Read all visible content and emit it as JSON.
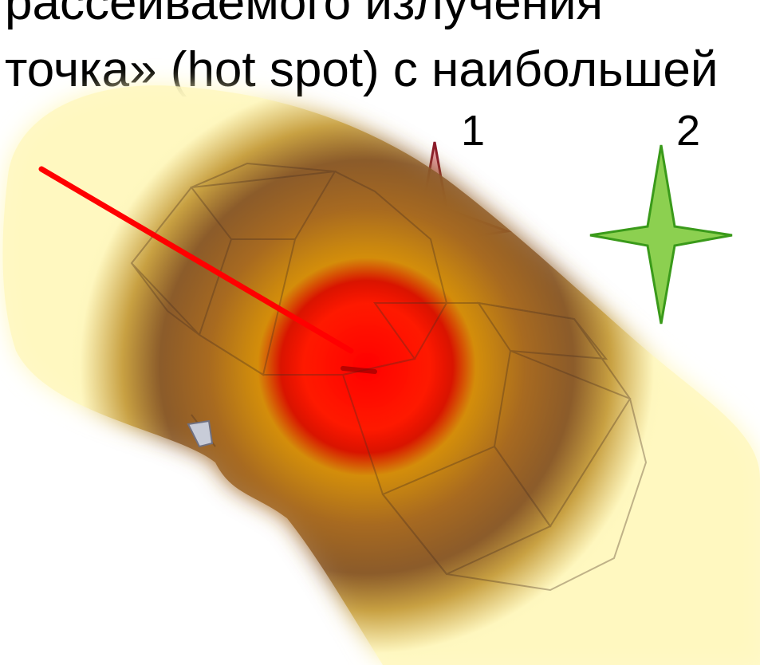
{
  "heading": {
    "line1": "рассеиваемого излучения",
    "line2": "точка» (hot spot) с наибольшей"
  },
  "labels": {
    "one": "1",
    "two": "2"
  },
  "colors": {
    "hotspot_core": "#ff0000",
    "hotspot_mid": "#d4900a",
    "hotspot_outer": "#8a5a2a",
    "halo": "#fff8c0",
    "arrow": "#ff0000",
    "star_1_fill": "#e8a0a8",
    "star_1_stroke": "#8b1a2a",
    "star_2_fill": "#8cd050",
    "star_2_stroke": "#3a9a1a"
  },
  "icons": {
    "star_1": "four-point-star-icon",
    "star_2": "four-point-star-icon",
    "arrow": "arrow-line-icon"
  }
}
